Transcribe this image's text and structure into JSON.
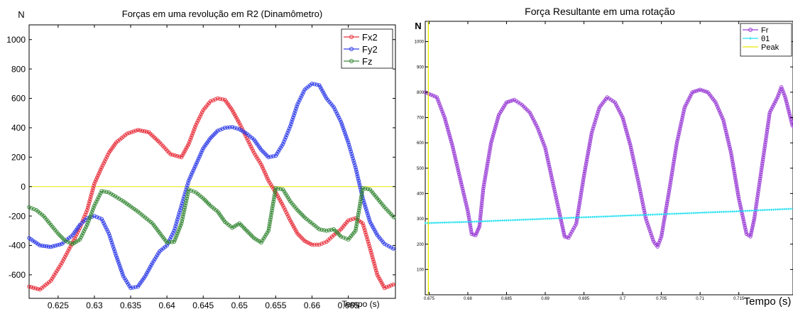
{
  "chart_data": [
    {
      "type": "line",
      "title": "Forças em uma revolução em R2 (Dinamômetro)",
      "ylabel": "N",
      "xlabel": "Tempo (s)",
      "xlim": [
        0.621,
        0.6715
      ],
      "ylim": [
        -760,
        1100
      ],
      "x_ticks": [
        0.625,
        0.63,
        0.635,
        0.64,
        0.645,
        0.65,
        0.655,
        0.66,
        0.665
      ],
      "x_tick_labels": [
        "0.625",
        "0.63",
        "0.635",
        "0.64",
        "0.645",
        "0.65",
        "0.655",
        "0.66",
        "0.665"
      ],
      "y_ticks": [
        -600,
        -400,
        -200,
        0,
        200,
        400,
        600,
        800,
        1000
      ],
      "y_tick_labels": [
        "-600",
        "-400",
        "-200",
        "0",
        "200",
        "400",
        "600",
        "800",
        "1000"
      ],
      "legend_position": "top-right",
      "grid": false,
      "reference_lines": [
        {
          "y": 0,
          "color": "#e8e800"
        }
      ],
      "series": [
        {
          "name": "Fx2",
          "color": "#e8333f",
          "x": [
            0.621,
            0.6225,
            0.624,
            0.6255,
            0.627,
            0.628,
            0.629,
            0.63,
            0.631,
            0.632,
            0.633,
            0.6345,
            0.636,
            0.6375,
            0.639,
            0.6405,
            0.642,
            0.643,
            0.644,
            0.645,
            0.646,
            0.647,
            0.648,
            0.649,
            0.65,
            0.651,
            0.652,
            0.653,
            0.654,
            0.655,
            0.656,
            0.657,
            0.658,
            0.659,
            0.66,
            0.661,
            0.662,
            0.663,
            0.664,
            0.665,
            0.666,
            0.667,
            0.668,
            0.669,
            0.67,
            0.6715
          ],
          "y": [
            -680,
            -700,
            -640,
            -520,
            -380,
            -280,
            -160,
            20,
            130,
            230,
            300,
            360,
            385,
            370,
            300,
            220,
            200,
            290,
            420,
            520,
            580,
            600,
            590,
            520,
            430,
            330,
            230,
            150,
            40,
            -40,
            -130,
            -230,
            -320,
            -370,
            -395,
            -395,
            -375,
            -330,
            -290,
            -230,
            -215,
            -250,
            -420,
            -600,
            -690,
            -660
          ]
        },
        {
          "name": "Fy2",
          "color": "#3340e8",
          "x": [
            0.621,
            0.6225,
            0.624,
            0.6255,
            0.627,
            0.628,
            0.629,
            0.63,
            0.631,
            0.632,
            0.633,
            0.634,
            0.635,
            0.636,
            0.637,
            0.638,
            0.639,
            0.64,
            0.641,
            0.642,
            0.643,
            0.644,
            0.645,
            0.646,
            0.647,
            0.648,
            0.649,
            0.65,
            0.651,
            0.652,
            0.653,
            0.654,
            0.655,
            0.656,
            0.657,
            0.658,
            0.659,
            0.66,
            0.661,
            0.662,
            0.663,
            0.664,
            0.665,
            0.666,
            0.667,
            0.668,
            0.669,
            0.67,
            0.6715
          ],
          "y": [
            -350,
            -400,
            -410,
            -390,
            -330,
            -260,
            -215,
            -200,
            -220,
            -320,
            -470,
            -610,
            -690,
            -680,
            -610,
            -520,
            -440,
            -400,
            -300,
            -130,
            40,
            150,
            260,
            330,
            380,
            400,
            405,
            390,
            360,
            320,
            250,
            200,
            210,
            290,
            410,
            560,
            660,
            700,
            690,
            600,
            540,
            440,
            300,
            130,
            -80,
            -240,
            -330,
            -390,
            -430
          ]
        },
        {
          "name": "Fz",
          "color": "#3a8a3a",
          "x": [
            0.621,
            0.622,
            0.623,
            0.624,
            0.625,
            0.626,
            0.627,
            0.628,
            0.629,
            0.63,
            0.631,
            0.632,
            0.634,
            0.636,
            0.638,
            0.64,
            0.641,
            0.642,
            0.643,
            0.644,
            0.645,
            0.646,
            0.647,
            0.648,
            0.649,
            0.65,
            0.651,
            0.652,
            0.653,
            0.654,
            0.655,
            0.656,
            0.657,
            0.658,
            0.659,
            0.66,
            0.661,
            0.662,
            0.663,
            0.664,
            0.665,
            0.666,
            0.667,
            0.668,
            0.669,
            0.67,
            0.6715
          ],
          "y": [
            -140,
            -160,
            -200,
            -260,
            -320,
            -370,
            -390,
            -360,
            -260,
            -130,
            -30,
            -40,
            -100,
            -170,
            -250,
            -380,
            -375,
            -250,
            -20,
            -40,
            -80,
            -130,
            -170,
            -240,
            -280,
            -250,
            -300,
            -350,
            -380,
            -300,
            -10,
            -20,
            -100,
            -160,
            -210,
            -250,
            -290,
            -300,
            -290,
            -340,
            -360,
            -300,
            -10,
            -20,
            -80,
            -140,
            -220
          ]
        }
      ]
    },
    {
      "type": "line",
      "title": "Força Resultante em uma rotação",
      "ylabel": "N",
      "xlabel": "Tempo (s)",
      "xlim": [
        0.6745,
        0.722
      ],
      "ylim": [
        0,
        1080
      ],
      "x_ticks": [
        0.675,
        0.68,
        0.685,
        0.69,
        0.695,
        0.7,
        0.705,
        0.71,
        0.715
      ],
      "x_tick_labels": [
        "0.675",
        "0.68",
        "0.685",
        "0.69",
        "0.695",
        "0.7",
        "0.705",
        "0.71",
        "0.715"
      ],
      "y_ticks": [
        100,
        200,
        300,
        400,
        500,
        600,
        700,
        800,
        900,
        1000
      ],
      "y_tick_labels": [
        "100",
        "200",
        "300",
        "400",
        "500",
        "600",
        "700",
        "800",
        "900",
        "1000"
      ],
      "legend_position": "top-right",
      "grid": false,
      "series": [
        {
          "name": "Fr",
          "color": "#9b3fd6",
          "x": [
            0.6745,
            0.676,
            0.677,
            0.678,
            0.679,
            0.68,
            0.6805,
            0.681,
            0.6815,
            0.682,
            0.683,
            0.684,
            0.685,
            0.686,
            0.687,
            0.688,
            0.689,
            0.69,
            0.691,
            0.692,
            0.6925,
            0.693,
            0.694,
            0.695,
            0.696,
            0.697,
            0.698,
            0.699,
            0.7,
            0.701,
            0.702,
            0.703,
            0.704,
            0.7045,
            0.705,
            0.706,
            0.707,
            0.708,
            0.709,
            0.71,
            0.711,
            0.712,
            0.713,
            0.714,
            0.715,
            0.716,
            0.7165,
            0.717,
            0.718,
            0.719,
            0.72,
            0.7205,
            0.721,
            0.722
          ],
          "y": [
            800,
            780,
            700,
            590,
            460,
            330,
            240,
            235,
            270,
            420,
            600,
            710,
            760,
            770,
            750,
            720,
            660,
            580,
            440,
            300,
            230,
            225,
            280,
            470,
            640,
            740,
            780,
            760,
            700,
            590,
            450,
            300,
            210,
            190,
            230,
            410,
            600,
            740,
            800,
            810,
            800,
            760,
            690,
            560,
            380,
            240,
            230,
            300,
            510,
            720,
            780,
            820,
            780,
            660
          ]
        },
        {
          "name": "θ1",
          "color": "#22e0f0",
          "x": [
            0.6745,
            0.68,
            0.685,
            0.69,
            0.695,
            0.7,
            0.705,
            0.71,
            0.715,
            0.722
          ],
          "y": [
            283,
            288,
            294,
            300,
            306,
            312,
            318,
            324,
            330,
            340
          ]
        },
        {
          "name": "Peak",
          "color": "#e8e800",
          "x": [
            0.6749,
            0.6749
          ],
          "y": [
            0,
            1080
          ]
        }
      ]
    }
  ]
}
